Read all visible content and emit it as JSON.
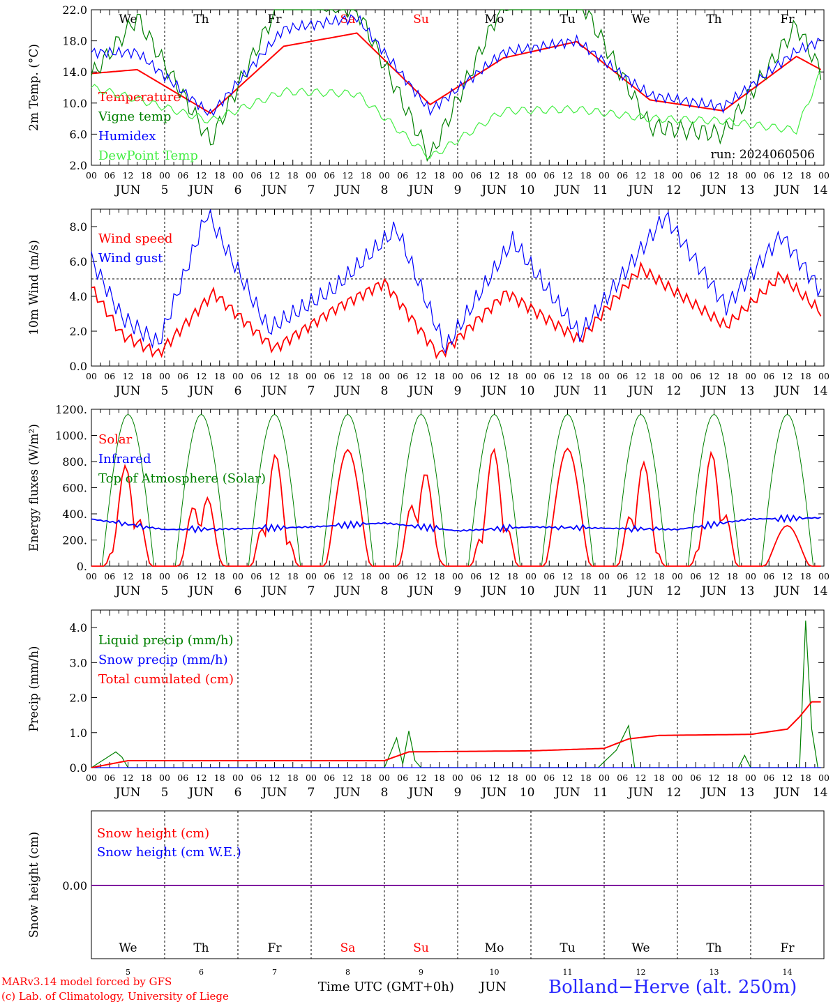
{
  "run_label": "run: 2024060506",
  "footer": {
    "credit_line1": "MARv3.14 model forced by GFS",
    "credit_line2": "(c) Lab. of Climatology, University of Liege",
    "xaxis_label": "Time UTC (GMT+0h)",
    "month": "JUN",
    "station": "Bolland−Herve (alt. 250m)"
  },
  "colors": {
    "red": "#ff0000",
    "green": "#008000",
    "blue": "#0000ff",
    "lightgreen": "#44ee44",
    "purple": "#8000a0"
  },
  "days": [
    {
      "dow": "We",
      "date": "5",
      "weekend": false
    },
    {
      "dow": "Th",
      "date": "6",
      "weekend": false
    },
    {
      "dow": "Fr",
      "date": "7",
      "weekend": false
    },
    {
      "dow": "Sa",
      "date": "8",
      "weekend": true
    },
    {
      "dow": "Su",
      "date": "9",
      "weekend": true
    },
    {
      "dow": "Mo",
      "date": "10",
      "weekend": false
    },
    {
      "dow": "Tu",
      "date": "11",
      "weekend": false
    },
    {
      "dow": "We",
      "date": "12",
      "weekend": false
    },
    {
      "dow": "Th",
      "date": "13",
      "weekend": false
    },
    {
      "dow": "Fr",
      "date": "14",
      "weekend": false
    }
  ],
  "hour_ticks": [
    "00",
    "06",
    "12",
    "18"
  ],
  "final_hour_tick": "00",
  "chart_data": [
    {
      "type": "line",
      "ylabel": "2m Temp. (°C)",
      "ylim": [
        2,
        22
      ],
      "yticks": [
        "2.0",
        "6.0",
        "10.0",
        "14.0",
        "18.0",
        "22.0"
      ],
      "series": [
        {
          "name": "Temperature",
          "color": "#ff0000",
          "x": [
            0,
            15,
            39,
            63,
            87,
            111,
            135,
            159,
            183,
            207,
            231,
            239
          ],
          "values": [
            13.8,
            14.3,
            8.7,
            17.3,
            19,
            9.8,
            15.8,
            17.9,
            10.4,
            9,
            16,
            14.3
          ]
        },
        {
          "name": "Vigne temp",
          "color": "#008000",
          "x": [
            0,
            15,
            39,
            63,
            87,
            111,
            135,
            159,
            183,
            207,
            231,
            239
          ],
          "values": [
            13.5,
            21,
            5,
            24,
            22,
            3,
            23,
            24,
            7,
            6,
            20,
            14
          ]
        },
        {
          "name": "Humidex",
          "color": "#0000ff",
          "x": [
            0,
            15,
            39,
            63,
            87,
            111,
            135,
            159,
            183,
            207,
            231,
            239
          ],
          "values": [
            16.5,
            16.5,
            8.5,
            19.5,
            21,
            9,
            16.5,
            18,
            11,
            9.5,
            16.7,
            18
          ]
        },
        {
          "name": "DewPoint Temp",
          "color": "#44ee44",
          "x": [
            0,
            15,
            39,
            63,
            87,
            111,
            135,
            159,
            183,
            207,
            231,
            239
          ],
          "values": [
            12,
            10.5,
            7.7,
            11.5,
            11.2,
            3,
            9,
            9.2,
            8,
            7.7,
            6.5,
            14
          ]
        }
      ]
    },
    {
      "type": "line",
      "ylabel": "10m Wind (m/s)",
      "ylim": [
        0,
        9
      ],
      "yticks": [
        "0.0",
        "2.0",
        "4.0",
        "6.0",
        "8.0"
      ],
      "reference_line": 5,
      "series": [
        {
          "name": "Wind speed",
          "color": "#ff0000",
          "x": [
            0,
            10,
            22,
            40,
            60,
            80,
            96,
            114,
            136,
            160,
            180,
            208,
            226,
            239
          ],
          "values": [
            4.5,
            1.8,
            0.7,
            4.2,
            1.0,
            3.3,
            4.8,
            0.6,
            4.2,
            1.5,
            5.6,
            2.3,
            5.2,
            3.1
          ]
        },
        {
          "name": "Wind gust",
          "color": "#0000ff",
          "x": [
            0,
            10,
            22,
            38,
            58,
            80,
            100,
            116,
            138,
            160,
            188,
            208,
            226,
            239
          ],
          "values": [
            6.1,
            2.8,
            1.3,
            8.8,
            2.1,
            4.5,
            7.9,
            1.0,
            7.2,
            1.8,
            8.6,
            3.4,
            7.5,
            4.3
          ]
        }
      ]
    },
    {
      "type": "line",
      "ylabel": "Energy fluxes (W/m²)",
      "ylim": [
        0,
        1200
      ],
      "yticks": [
        "0.",
        "200.",
        "400.",
        "600.",
        "800.",
        "1000.",
        "1200."
      ],
      "series": [
        {
          "name": "Solar",
          "color": "#ff0000",
          "peaks_by_day": [
            800,
            650,
            860,
            890,
            800,
            900,
            900,
            830,
            900,
            310
          ]
        },
        {
          "name": "Infrared",
          "color": "#0000ff",
          "x": [
            0,
            24,
            48,
            72,
            96,
            120,
            144,
            168,
            192,
            216,
            239
          ],
          "values": [
            360,
            280,
            285,
            300,
            330,
            270,
            300,
            290,
            280,
            360,
            370
          ]
        },
        {
          "name": "Top of Atmosphere (Solar)",
          "color": "#008000",
          "daily_peak": 1160
        }
      ]
    },
    {
      "type": "line",
      "ylabel": "Precip (mm/h)",
      "ylim": [
        0,
        4.5
      ],
      "yticks": [
        "0.0",
        "1.0",
        "2.0",
        "3.0",
        "4.0"
      ],
      "series": [
        {
          "name": "Liquid precip (mm/h)",
          "color": "#008000",
          "x": [
            0,
            8,
            10,
            12,
            96,
            100,
            102,
            104,
            106,
            108,
            110,
            166,
            172,
            176,
            178,
            212,
            214,
            216,
            232,
            234,
            236,
            238
          ],
          "values": [
            0,
            0.45,
            0.3,
            0,
            0,
            0.85,
            0.1,
            1.05,
            0.2,
            0,
            0,
            0,
            0.5,
            1.2,
            0,
            0,
            0.35,
            0,
            0,
            4.2,
            1.1,
            0
          ]
        },
        {
          "name": "Snow precip (mm/h)",
          "color": "#0000ff",
          "x": [
            0,
            239
          ],
          "values": [
            0,
            0
          ]
        },
        {
          "name": "Total cumulated (cm)",
          "color": "#ff0000",
          "x": [
            0,
            12,
            96,
            104,
            144,
            168,
            176,
            186,
            216,
            228,
            232,
            236,
            239
          ],
          "values": [
            0,
            0.2,
            0.2,
            0.45,
            0.48,
            0.55,
            0.82,
            0.92,
            0.95,
            1.1,
            1.45,
            1.88,
            1.88
          ]
        }
      ]
    },
    {
      "type": "line",
      "ylabel": "Snow height (cm)",
      "yticks": [
        "0.00"
      ],
      "series": [
        {
          "name": "Snow height (cm)",
          "color": "#ff0000",
          "x": [
            0,
            239
          ],
          "values": [
            0,
            0
          ]
        },
        {
          "name": "Snow height (cm W.E.)",
          "color": "#0000ff",
          "x": [
            0,
            239
          ],
          "values": [
            0,
            0
          ]
        }
      ]
    }
  ]
}
